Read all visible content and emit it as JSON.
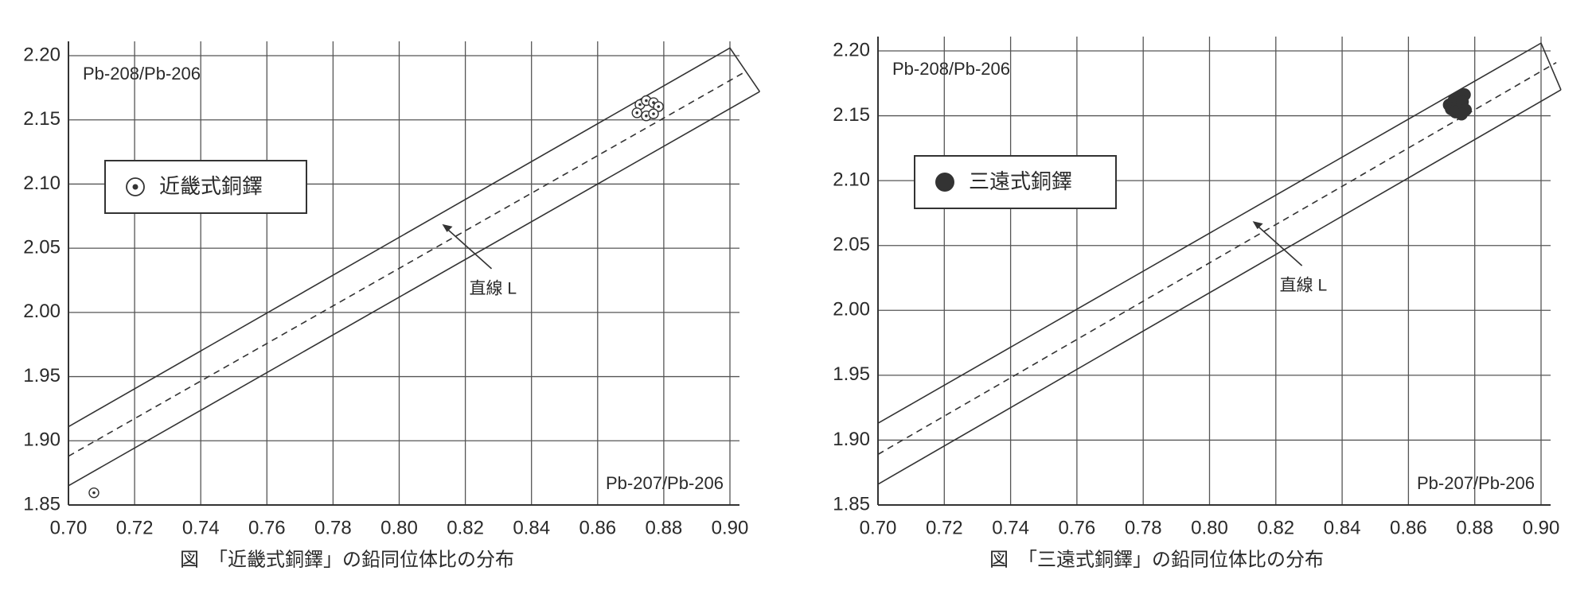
{
  "chart_data": [
    {
      "type": "scatter",
      "x_label": "Pb-207/Pb-206",
      "y_label": "Pb-208/Pb-206",
      "caption": "図　「近畿式銅鐸」の鉛同位体比の分布",
      "annotation": "直線 L",
      "xlim": [
        0.7,
        0.9
      ],
      "xticks": [
        {
          "value": 0.7,
          "label": "0.70"
        },
        0.72,
        0.74,
        0.76,
        0.78,
        {
          "value": 0.8,
          "label": "0.80"
        },
        0.82,
        0.84,
        0.86,
        0.88,
        {
          "value": 0.9,
          "label": "0.90"
        }
      ],
      "ylim": [
        1.85,
        2.2
      ],
      "yticks": [
        1.85,
        {
          "value": 1.9,
          "label": "1.90"
        },
        1.95,
        {
          "value": 2.0,
          "label": "2.00"
        },
        2.05,
        {
          "value": 2.1,
          "label": "2.10"
        },
        2.15,
        {
          "value": 2.2,
          "label": "2.20"
        }
      ],
      "grid": true,
      "lines": [
        {
          "style": "solid",
          "x": [
            0.7,
            0.9,
            0.909
          ],
          "values": [
            1.911,
            2.206,
            2.172
          ]
        },
        {
          "style": "solid",
          "x": [
            0.7,
            0.909
          ],
          "values": [
            1.865,
            2.172
          ]
        },
        {
          "style": "dashed",
          "x": [
            0.7,
            0.905
          ],
          "values": [
            1.888,
            2.188
          ]
        }
      ],
      "series": [
        {
          "name": "近畿式銅鐸",
          "marker": "dot-circle",
          "color": "#333333",
          "x": [
            0.8728,
            0.8747,
            0.8769,
            0.8784,
            0.8719,
            0.8747,
            0.8769,
            0.7077
          ],
          "values": [
            2.1619,
            2.165,
            2.1634,
            2.1603,
            2.1555,
            2.1531,
            2.1547,
            1.8595
          ]
        }
      ]
    },
    {
      "type": "scatter",
      "x_label": "Pb-207/Pb-206",
      "y_label": "Pb-208/Pb-206",
      "caption": "図　「三遠式銅鐸」の鉛同位体比の分布",
      "annotation": "直線 L",
      "xlim": [
        0.7,
        0.9
      ],
      "xticks": [
        {
          "value": 0.7,
          "label": "0.70"
        },
        0.72,
        0.74,
        0.76,
        0.78,
        {
          "value": 0.8,
          "label": "0.80"
        },
        0.82,
        0.84,
        0.86,
        0.88,
        {
          "value": 0.9,
          "label": "0.90"
        }
      ],
      "ylim": [
        1.85,
        2.2
      ],
      "yticks": [
        1.85,
        {
          "value": 1.9,
          "label": "1.90"
        },
        1.95,
        {
          "value": 2.0,
          "label": "2.00"
        },
        2.05,
        {
          "value": 2.1,
          "label": "2.10"
        },
        2.15,
        {
          "value": 2.2,
          "label": "2.20"
        }
      ],
      "grid": true,
      "lines": [
        {
          "style": "solid",
          "x": [
            0.7,
            0.9,
            0.906
          ],
          "values": [
            1.913,
            2.206,
            2.17
          ]
        },
        {
          "style": "solid",
          "x": [
            0.7,
            0.906
          ],
          "values": [
            1.866,
            2.17
          ]
        },
        {
          "style": "dashed",
          "x": [
            0.7,
            0.9046
          ],
          "values": [
            1.889,
            2.191
          ]
        }
      ],
      "series": [
        {
          "name": "三遠式銅鐸",
          "marker": "filled",
          "color": "#333333",
          "x": [
            0.8723,
            0.8738,
            0.8754,
            0.8769,
            0.8729,
            0.8748,
            0.8763,
            0.8772,
            0.8742,
            0.876
          ],
          "values": [
            2.1584,
            2.1623,
            2.1647,
            2.1663,
            2.1553,
            2.1576,
            2.1607,
            2.1545,
            2.1529,
            2.1513
          ]
        }
      ]
    }
  ]
}
